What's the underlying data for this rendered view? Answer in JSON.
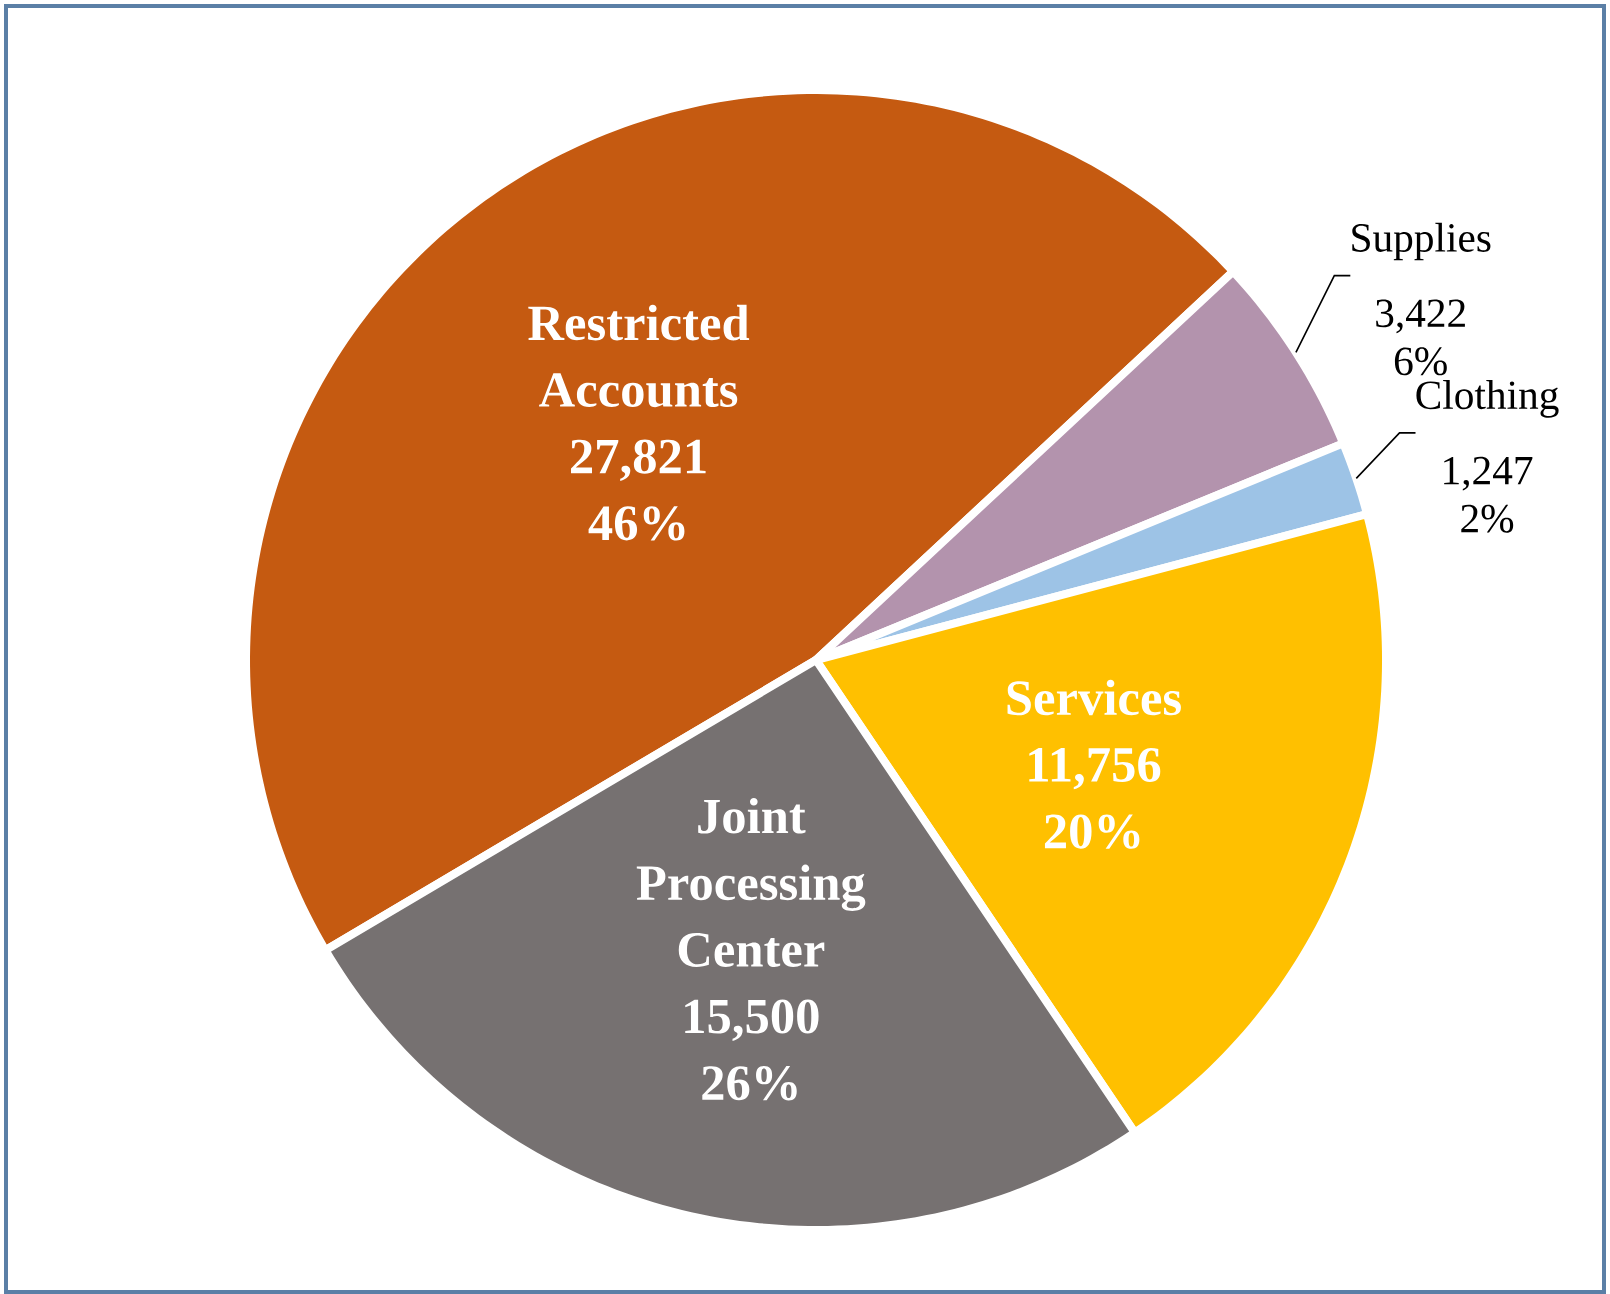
{
  "chart_data": {
    "type": "pie",
    "categories": [
      "Restricted Accounts",
      "Supplies",
      "Clothing",
      "Services",
      "Joint Processing Center"
    ],
    "values": [
      27821,
      3422,
      1247,
      11756,
      15500
    ],
    "value_labels": [
      "27,821 46%",
      "3,422 6%",
      "1,247 2%",
      "11,756 20%",
      "15,500 26%"
    ],
    "colors": [
      "#c55a11",
      "#b393ad",
      "#9dc3e6",
      "#ffc000",
      "#767171"
    ]
  }
}
